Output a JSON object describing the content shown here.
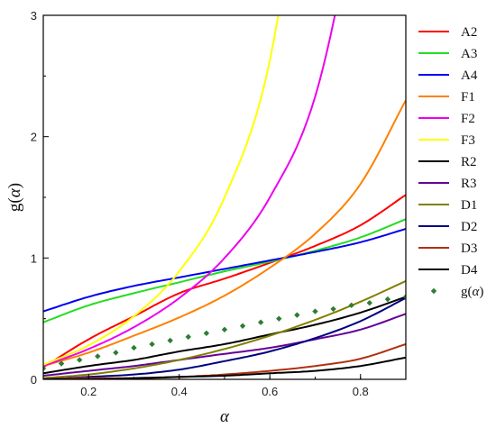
{
  "chart_data": {
    "type": "line",
    "title": "",
    "xlabel": "α",
    "ylabel_main": "g(",
    "ylabel_sym": "α",
    "ylabel_close": ")",
    "xlim": [
      0.1,
      0.9
    ],
    "ylim": [
      0,
      3
    ],
    "xticks": [
      {
        "value": 0.2,
        "label": "0.2"
      },
      {
        "value": 0.4,
        "label": "0.4"
      },
      {
        "value": 0.6,
        "label": "0.6"
      },
      {
        "value": 0.8,
        "label": "0.8"
      }
    ],
    "yticks": [
      {
        "value": 0,
        "label": "0"
      },
      {
        "value": 1,
        "label": "1"
      },
      {
        "value": 2,
        "label": "2"
      },
      {
        "value": 3,
        "label": "3"
      }
    ],
    "legend_position": "right",
    "series": [
      {
        "name": "A2",
        "color": "#ff0000",
        "x": [
          0.1,
          0.2,
          0.3,
          0.4,
          0.5,
          0.6,
          0.7,
          0.8,
          0.9
        ],
        "y": [
          0.1,
          0.33,
          0.52,
          0.71,
          0.83,
          0.96,
          1.1,
          1.27,
          1.52
        ]
      },
      {
        "name": "A3",
        "color": "#22dd22",
        "x": [
          0.1,
          0.2,
          0.3,
          0.4,
          0.5,
          0.6,
          0.7,
          0.8,
          0.9
        ],
        "y": [
          0.47,
          0.61,
          0.71,
          0.8,
          0.89,
          0.97,
          1.06,
          1.17,
          1.32
        ]
      },
      {
        "name": "A4",
        "color": "#0000ee",
        "x": [
          0.1,
          0.2,
          0.3,
          0.4,
          0.5,
          0.6,
          0.7,
          0.8,
          0.9
        ],
        "y": [
          0.56,
          0.68,
          0.77,
          0.84,
          0.91,
          0.98,
          1.05,
          1.13,
          1.24
        ]
      },
      {
        "name": "F1",
        "color": "#ff8000",
        "x": [
          0.1,
          0.2,
          0.3,
          0.4,
          0.5,
          0.6,
          0.7,
          0.8,
          0.9
        ],
        "y": [
          0.11,
          0.22,
          0.36,
          0.51,
          0.69,
          0.92,
          1.2,
          1.61,
          2.3
        ]
      },
      {
        "name": "F2",
        "color": "#ee00ee",
        "x": [
          0.1,
          0.2,
          0.3,
          0.4,
          0.5,
          0.6,
          0.7,
          0.8
        ],
        "y": [
          0.11,
          0.25,
          0.43,
          0.67,
          1.0,
          1.5,
          2.33,
          4.0
        ]
      },
      {
        "name": "F3",
        "color": "#ffff00",
        "x": [
          0.1,
          0.2,
          0.3,
          0.4,
          0.5,
          0.6,
          0.7
        ],
        "y": [
          0.12,
          0.28,
          0.52,
          0.89,
          1.5,
          2.63,
          5.06
        ]
      },
      {
        "name": "R2",
        "color": "#000000",
        "x": [
          0.1,
          0.2,
          0.3,
          0.4,
          0.5,
          0.6,
          0.7,
          0.8,
          0.9
        ],
        "y": [
          0.05,
          0.11,
          0.16,
          0.23,
          0.29,
          0.37,
          0.45,
          0.55,
          0.68
        ]
      },
      {
        "name": "R3",
        "color": "#660099",
        "x": [
          0.1,
          0.2,
          0.3,
          0.4,
          0.5,
          0.6,
          0.7,
          0.8,
          0.9
        ],
        "y": [
          0.03,
          0.07,
          0.11,
          0.16,
          0.21,
          0.26,
          0.33,
          0.41,
          0.54
        ]
      },
      {
        "name": "D1",
        "color": "#808000",
        "x": [
          0.1,
          0.2,
          0.3,
          0.4,
          0.5,
          0.6,
          0.7,
          0.8,
          0.9
        ],
        "y": [
          0.01,
          0.04,
          0.09,
          0.16,
          0.25,
          0.36,
          0.49,
          0.64,
          0.81
        ]
      },
      {
        "name": "D2",
        "color": "#000080",
        "x": [
          0.1,
          0.2,
          0.3,
          0.4,
          0.5,
          0.6,
          0.7,
          0.8,
          0.9
        ],
        "y": [
          0.0,
          0.02,
          0.04,
          0.08,
          0.15,
          0.23,
          0.34,
          0.48,
          0.67
        ]
      },
      {
        "name": "D3",
        "color": "#b03010",
        "x": [
          0.1,
          0.2,
          0.3,
          0.4,
          0.5,
          0.6,
          0.7,
          0.8,
          0.9
        ],
        "y": [
          0.0,
          0.01,
          0.01,
          0.02,
          0.04,
          0.07,
          0.11,
          0.17,
          0.29
        ]
      },
      {
        "name": "D4",
        "color": "#000000",
        "x": [
          0.1,
          0.2,
          0.3,
          0.4,
          0.5,
          0.6,
          0.7,
          0.8,
          0.9
        ],
        "y": [
          0.0,
          0.0,
          0.01,
          0.02,
          0.03,
          0.05,
          0.07,
          0.11,
          0.18
        ]
      }
    ],
    "scatter": {
      "name_main": "g(",
      "name_sym": "α",
      "name_close": ")",
      "color": "#2e7d32",
      "x": [
        0.1,
        0.14,
        0.18,
        0.22,
        0.26,
        0.3,
        0.34,
        0.38,
        0.42,
        0.46,
        0.5,
        0.54,
        0.58,
        0.62,
        0.66,
        0.7,
        0.74,
        0.78,
        0.82,
        0.86,
        0.9
      ],
      "y": [
        0.09,
        0.13,
        0.16,
        0.19,
        0.22,
        0.26,
        0.29,
        0.32,
        0.35,
        0.38,
        0.41,
        0.44,
        0.47,
        0.5,
        0.53,
        0.56,
        0.58,
        0.61,
        0.63,
        0.66,
        0.68
      ]
    }
  }
}
